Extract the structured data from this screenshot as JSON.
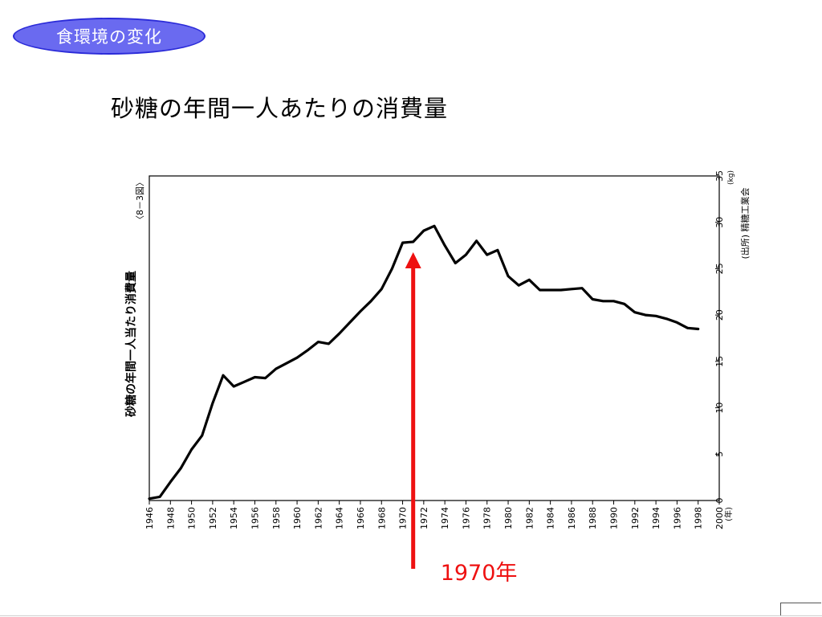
{
  "slide": {
    "badge": "食環境の変化",
    "title": "砂糖の年間一人あたりの消費量",
    "callout": "1970年"
  },
  "colors": {
    "badge_fill": "#6a6af0",
    "badge_border": "#2b2bd8",
    "callout": "#ee1111",
    "line": "#000000"
  },
  "chart_data": {
    "type": "line",
    "figure_no": "〈8－3図〉",
    "ylabel": "砂糖の年間一人当たり消費量",
    "unit": "(kg)",
    "source": "(出所) 精糖工業会",
    "x_unit": "(年)",
    "xlim": [
      1946,
      2000
    ],
    "ylim": [
      0,
      35
    ],
    "x_ticks": [
      1946,
      1948,
      1950,
      1952,
      1954,
      1956,
      1958,
      1960,
      1962,
      1964,
      1966,
      1968,
      1970,
      1972,
      1974,
      1976,
      1978,
      1980,
      1982,
      1984,
      1986,
      1988,
      1990,
      1992,
      1994,
      1996,
      1998,
      2000
    ],
    "y_ticks": [
      0,
      5,
      10,
      15,
      20,
      25,
      30,
      35
    ],
    "grid": false,
    "series": [
      {
        "x": [
          1946,
          1947,
          1948,
          1949,
          1950,
          1951,
          1952,
          1953,
          1954,
          1955,
          1956,
          1957,
          1958,
          1959,
          1960,
          1961,
          1962,
          1963,
          1964,
          1965,
          1966,
          1967,
          1968,
          1969,
          1970,
          1971,
          1972,
          1973,
          1974,
          1975,
          1976,
          1977,
          1978,
          1979,
          1980,
          1981,
          1982,
          1983,
          1984,
          1985,
          1986,
          1987,
          1988,
          1989,
          1990,
          1991,
          1992,
          1993,
          1994,
          1995,
          1996,
          1997,
          1998
        ],
        "y": [
          0.2,
          0.4,
          2.0,
          3.5,
          5.5,
          7.0,
          10.5,
          13.5,
          12.3,
          12.8,
          13.3,
          13.2,
          14.2,
          14.8,
          15.4,
          16.2,
          17.1,
          16.9,
          18.0,
          19.2,
          20.4,
          21.5,
          22.8,
          25.0,
          27.8,
          27.9,
          29.1,
          29.6,
          27.5,
          25.6,
          26.5,
          28.0,
          26.5,
          27.0,
          24.2,
          23.2,
          23.8,
          22.7,
          22.7,
          22.7,
          22.8,
          22.9,
          21.7,
          21.5,
          21.5,
          21.2,
          20.3,
          20.0,
          19.9,
          19.6,
          19.2,
          18.6,
          18.5
        ]
      }
    ],
    "annotation": {
      "x": 1971,
      "y": 26.6,
      "label": "1970年"
    }
  }
}
